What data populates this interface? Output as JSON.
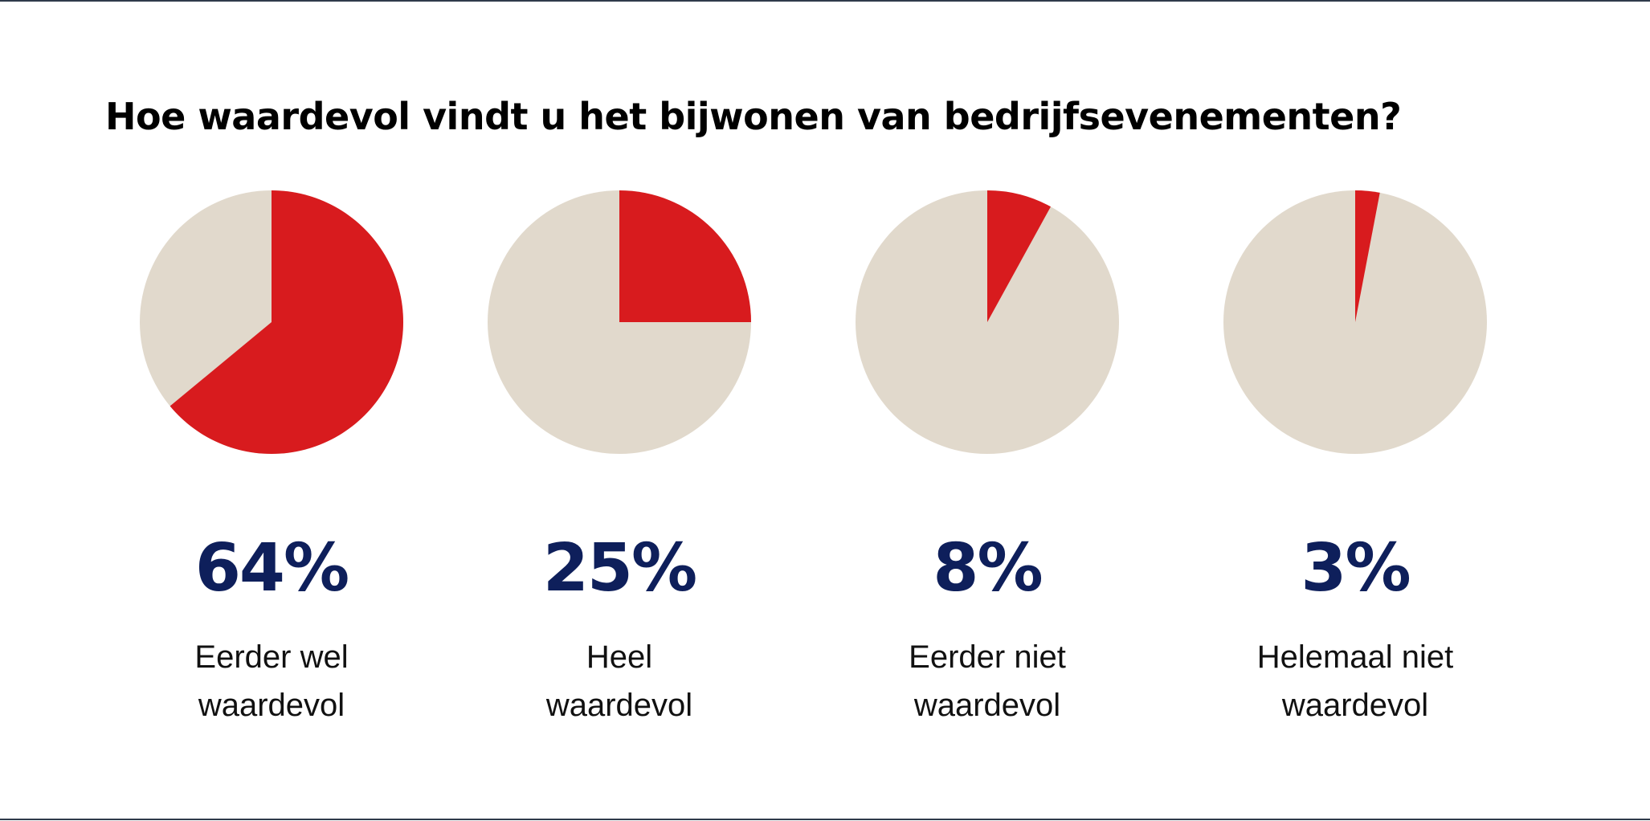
{
  "title": "Hoe waardevol vindt u het bijwonen van bedrijfsevenementen?",
  "colors": {
    "accent": "#d81b1e",
    "remainder": "#e1d9cc",
    "value_text": "#0e1f5b",
    "rule": "#2f3a4a"
  },
  "chart_data": {
    "type": "pie",
    "title": "Hoe waardevol vindt u het bijwonen van bedrijfsevenementen?",
    "unit": "%",
    "categories": [
      "Eerder wel waardevol",
      "Heel waardevol",
      "Eerder niet waardevol",
      "Helemaal niet waardevol"
    ],
    "values": [
      64,
      25,
      8,
      3
    ],
    "items": [
      {
        "value": 64,
        "value_label": "64%",
        "label_lines": [
          "Eerder wel",
          "waardevol"
        ]
      },
      {
        "value": 25,
        "value_label": "25%",
        "label_lines": [
          "Heel",
          "waardevol"
        ]
      },
      {
        "value": 8,
        "value_label": "8%",
        "label_lines": [
          "Eerder niet",
          "waardevol"
        ]
      },
      {
        "value": 3,
        "value_label": "3%",
        "label_lines": [
          "Helemaal niet",
          "waardevol"
        ]
      }
    ]
  }
}
